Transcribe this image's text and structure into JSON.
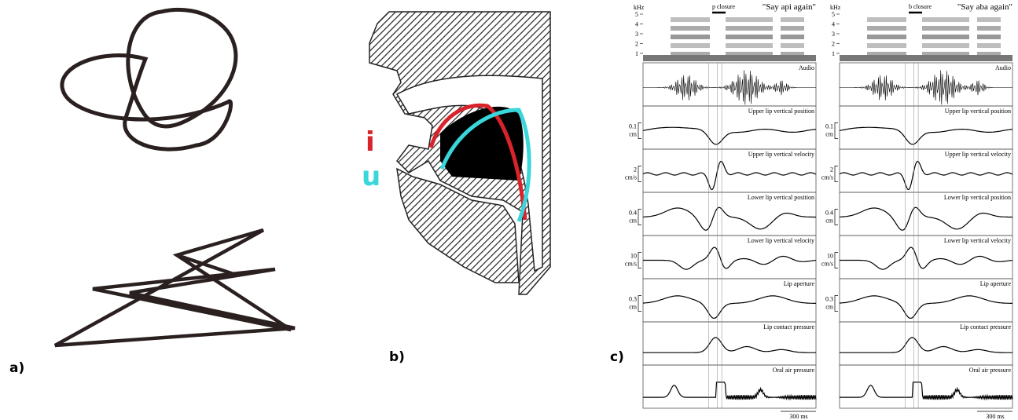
{
  "panels": {
    "a": {
      "label": "a)"
    },
    "b": {
      "label": "b)",
      "vowels": [
        "i",
        "u"
      ]
    },
    "c": {
      "label": "c)",
      "columns": [
        {
          "closure": "p closure",
          "utterance": "\"Say api again\"",
          "freq_unit": "kHz",
          "freq_ticks": [
            "5",
            "4",
            "3",
            "2",
            "1"
          ],
          "tracks": [
            {
              "name": "Audio"
            },
            {
              "name": "Upper lip vertical position",
              "scale": "0.1",
              "unit": "cm"
            },
            {
              "name": "Upper lip vertical velocity",
              "scale": "2",
              "unit": "cm/s"
            },
            {
              "name": "Lower lip vertical position",
              "scale": "0.4",
              "unit": "cm"
            },
            {
              "name": "Lower lip vertical velocity",
              "scale": "10",
              "unit": "cm/s"
            },
            {
              "name": "Lip aperture",
              "scale": "0.3",
              "unit": "cm"
            },
            {
              "name": "Lip contact pressure"
            },
            {
              "name": "Oral air pressure"
            }
          ],
          "time_scale": "300 ms"
        },
        {
          "closure": "b closure",
          "utterance": "\"Say aba again\"",
          "freq_unit": "kHz",
          "freq_ticks": [
            "5",
            "4",
            "3",
            "2",
            "1"
          ],
          "tracks": [
            {
              "name": "Audio"
            },
            {
              "name": "Upper lip vertical position",
              "scale": "0.1",
              "unit": "cm"
            },
            {
              "name": "Upper lip vertical velocity",
              "scale": "2",
              "unit": "cm/s"
            },
            {
              "name": "Lower lip vertical position",
              "scale": "0.4",
              "unit": "cm"
            },
            {
              "name": "Lower lip vertical velocity",
              "scale": "10",
              "unit": "cm/s"
            },
            {
              "name": "Lip aperture",
              "scale": "0.3",
              "unit": "cm"
            },
            {
              "name": "Lip contact pressure"
            },
            {
              "name": "Oral air pressure"
            }
          ],
          "time_scale": "300 ms"
        }
      ]
    }
  }
}
